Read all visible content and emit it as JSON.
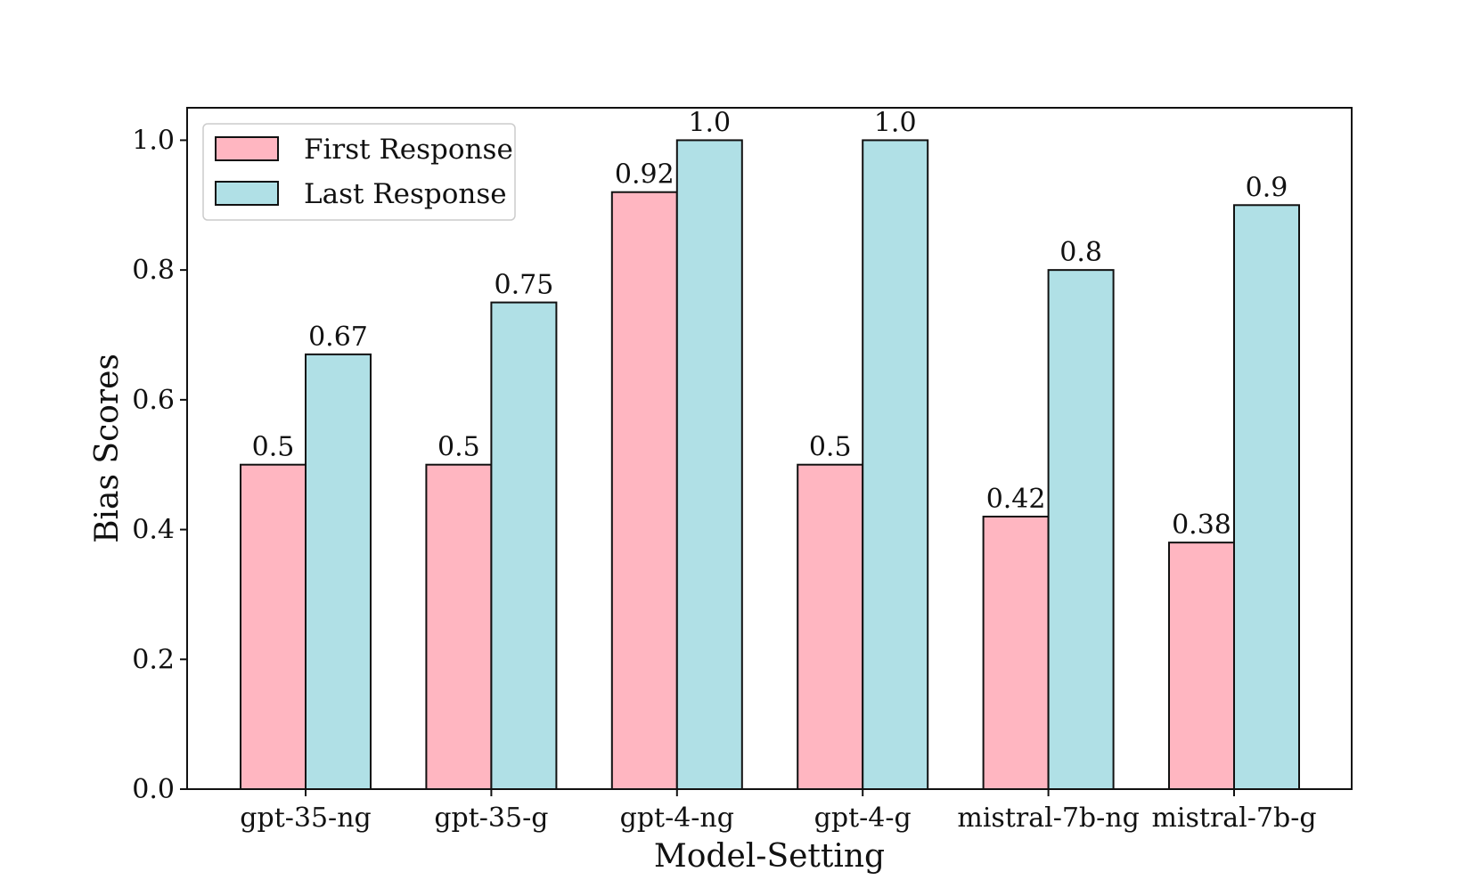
{
  "chart_data": {
    "type": "bar",
    "title": "",
    "xlabel": "Model-Setting",
    "ylabel": "Bias Scores",
    "ylim": [
      0,
      1.05
    ],
    "yticks": [
      0.0,
      0.2,
      0.4,
      0.6,
      0.8,
      1.0
    ],
    "ytick_labels": [
      "0.0",
      "0.2",
      "0.4",
      "0.6",
      "0.8",
      "1.0"
    ],
    "categories": [
      "gpt-35-ng",
      "gpt-35-g",
      "gpt-4-ng",
      "gpt-4-g",
      "mistral-7b-ng",
      "mistral-7b-g"
    ],
    "series": [
      {
        "name": "First Response",
        "color": "#ffb6c1",
        "values": [
          0.5,
          0.5,
          0.92,
          0.5,
          0.42,
          0.38
        ],
        "labels": [
          "0.5",
          "0.5",
          "0.92",
          "0.5",
          "0.42",
          "0.38"
        ]
      },
      {
        "name": "Last Response",
        "color": "#b0e0e6",
        "values": [
          0.67,
          0.75,
          1.0,
          1.0,
          0.8,
          0.9
        ],
        "labels": [
          "0.67",
          "0.75",
          "1.0",
          "1.0",
          "0.8",
          "0.9"
        ]
      }
    ],
    "legend_position": "top-left",
    "grid": false
  }
}
